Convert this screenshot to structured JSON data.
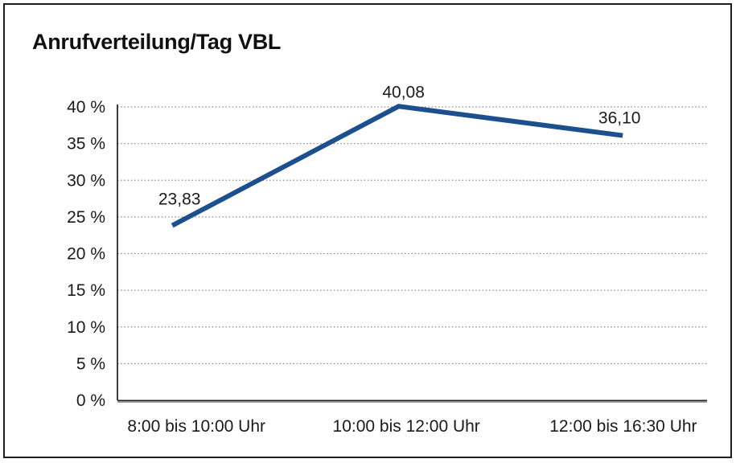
{
  "chart_data": {
    "type": "line",
    "title": "Anrufverteilung/Tag VBL",
    "categories": [
      "8:00 bis 10:00 Uhr",
      "10:00 bis 12:00 Uhr",
      "12:00 bis 16:30 Uhr"
    ],
    "values": [
      23.83,
      40.08,
      36.1
    ],
    "value_labels": [
      "23,83",
      "40,08",
      "36,10"
    ],
    "y_tick_values": [
      0,
      5,
      10,
      15,
      20,
      25,
      30,
      35,
      40
    ],
    "y_tick_labels": [
      "0 %",
      "5 %",
      "10 %",
      "15 %",
      "20 %",
      "25 %",
      "30 %",
      "35 %",
      "40 %"
    ],
    "ylim": [
      0,
      40
    ],
    "xlabel": "",
    "ylabel": "",
    "grid": "horizontal-dotted",
    "legend": "none",
    "colors": {
      "line": "#1c4f8e",
      "grid": "#8f8f8f",
      "axis": "#262626",
      "axis_shadow": "#9b9b9b",
      "text": "#1a1a1a",
      "frame_border": "#1c1c1c",
      "background": "#ffffff"
    }
  }
}
